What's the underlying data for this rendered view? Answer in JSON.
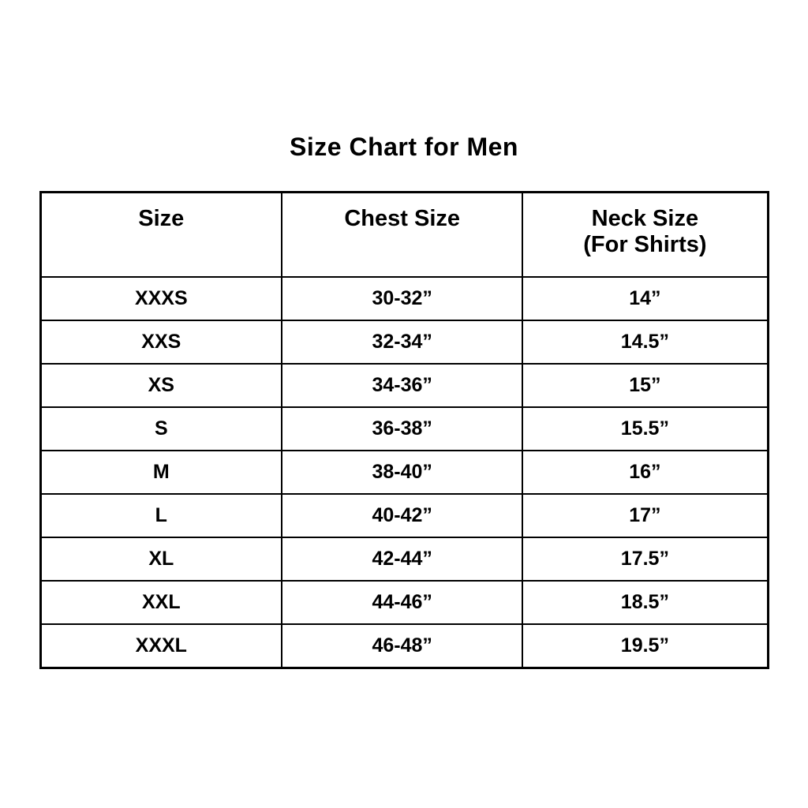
{
  "title": "Size Chart for Men",
  "colors": {
    "background": "#ffffff",
    "text": "#000000",
    "border": "#000000"
  },
  "chart_data": {
    "type": "table",
    "title": "Size Chart for Men",
    "columns": [
      {
        "label": "Size",
        "sublabel": ""
      },
      {
        "label": "Chest Size",
        "sublabel": ""
      },
      {
        "label": "Neck Size",
        "sublabel": "(For Shirts)"
      }
    ],
    "rows": [
      {
        "size": "XXXS",
        "chest": "30-32”",
        "neck": "14”"
      },
      {
        "size": "XXS",
        "chest": "32-34”",
        "neck": "14.5”"
      },
      {
        "size": "XS",
        "chest": "34-36”",
        "neck": "15”"
      },
      {
        "size": "S",
        "chest": "36-38”",
        "neck": "15.5”"
      },
      {
        "size": "M",
        "chest": "38-40”",
        "neck": "16”"
      },
      {
        "size": "L",
        "chest": "40-42”",
        "neck": "17”"
      },
      {
        "size": "XL",
        "chest": "42-44”",
        "neck": "17.5”"
      },
      {
        "size": "XXL",
        "chest": "44-46”",
        "neck": "18.5”"
      },
      {
        "size": "XXXL",
        "chest": "46-48”",
        "neck": "19.5”"
      }
    ]
  }
}
